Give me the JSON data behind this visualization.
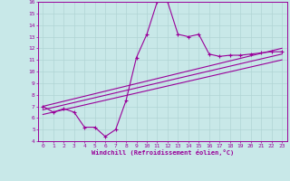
{
  "xlabel": "Windchill (Refroidissement éolien,°C)",
  "bg_color": "#c8e8e8",
  "grid_color": "#b0d4d4",
  "line_color": "#990099",
  "xlim": [
    -0.5,
    23.5
  ],
  "ylim": [
    4,
    16
  ],
  "xticks": [
    0,
    1,
    2,
    3,
    4,
    5,
    6,
    7,
    8,
    9,
    10,
    11,
    12,
    13,
    14,
    15,
    16,
    17,
    18,
    19,
    20,
    21,
    22,
    23
  ],
  "yticks": [
    4,
    5,
    6,
    7,
    8,
    9,
    10,
    11,
    12,
    13,
    14,
    15,
    16
  ],
  "line1_x": [
    0,
    1,
    2,
    3,
    4,
    5,
    6,
    7,
    8,
    9,
    10,
    11,
    12,
    13,
    14,
    15,
    16,
    17,
    18,
    19,
    20,
    21,
    22,
    23
  ],
  "line1_y": [
    7.0,
    6.5,
    6.8,
    6.5,
    5.2,
    5.2,
    4.4,
    5.0,
    7.5,
    11.2,
    13.2,
    16.0,
    16.0,
    13.2,
    13.0,
    13.2,
    11.5,
    11.3,
    11.4,
    11.4,
    11.5,
    11.6,
    11.7,
    11.7
  ],
  "line2_x": [
    0,
    23
  ],
  "line2_y": [
    7.0,
    12.0
  ],
  "line3_x": [
    0,
    23
  ],
  "line3_y": [
    6.7,
    11.5
  ],
  "line4_x": [
    0,
    23
  ],
  "line4_y": [
    6.3,
    11.0
  ]
}
